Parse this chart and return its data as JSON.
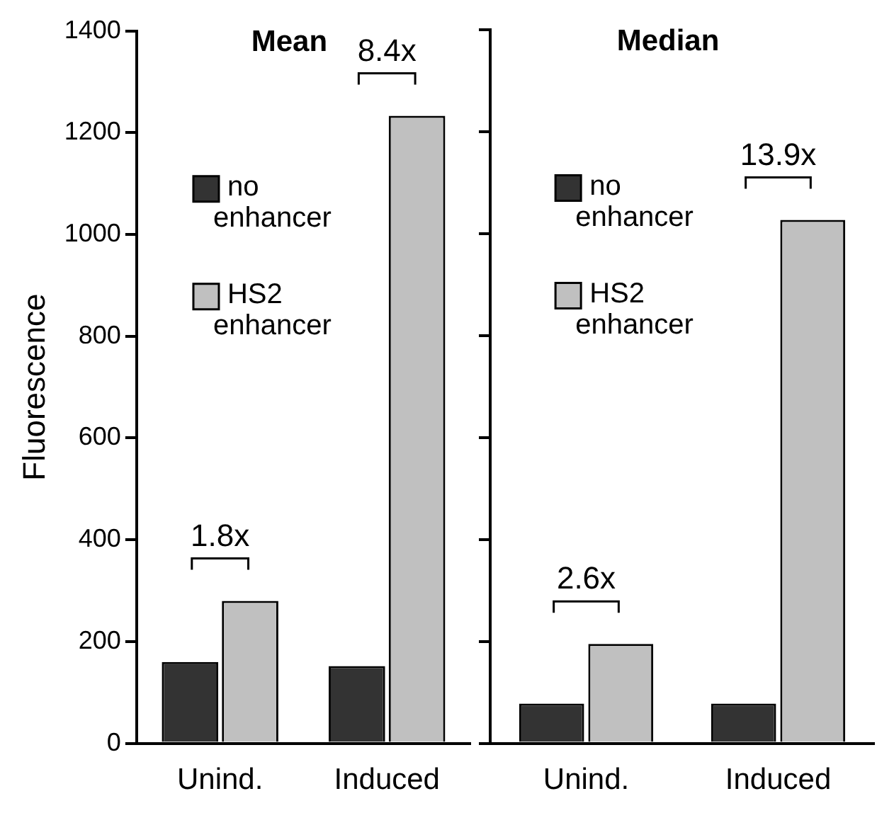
{
  "chart_data": [
    {
      "type": "bar",
      "title": "Mean",
      "ylabel": "Fluorescence",
      "categories": [
        "Unind.",
        "Induced"
      ],
      "series": [
        {
          "name": "no enhancer",
          "color": "#333333",
          "values": [
            160,
            152
          ]
        },
        {
          "name": "HS2 enhancer",
          "color": "#c0c0c0",
          "values": [
            280,
            1233
          ]
        }
      ],
      "ylim": [
        0,
        1400
      ],
      "yticks": [
        0,
        200,
        400,
        600,
        800,
        1000,
        1200,
        1400
      ],
      "legend": "top left",
      "annotations": [
        "1.8x",
        "8.4x"
      ]
    },
    {
      "type": "bar",
      "title": "Median",
      "categories": [
        "Unind.",
        "Induced"
      ],
      "series": [
        {
          "name": "no enhancer",
          "color": "#333333",
          "values": [
            78,
            78
          ]
        },
        {
          "name": "HS2 enhancer",
          "color": "#c0c0c0",
          "values": [
            195,
            1027
          ]
        }
      ],
      "ylim": [
        0,
        1400
      ],
      "yticks": [
        0,
        200,
        400,
        600,
        800,
        1000,
        1200,
        1400
      ],
      "legend": "top left",
      "tick_labels": "x",
      "annotations": [
        "2.6x",
        "13.9x"
      ]
    }
  ]
}
